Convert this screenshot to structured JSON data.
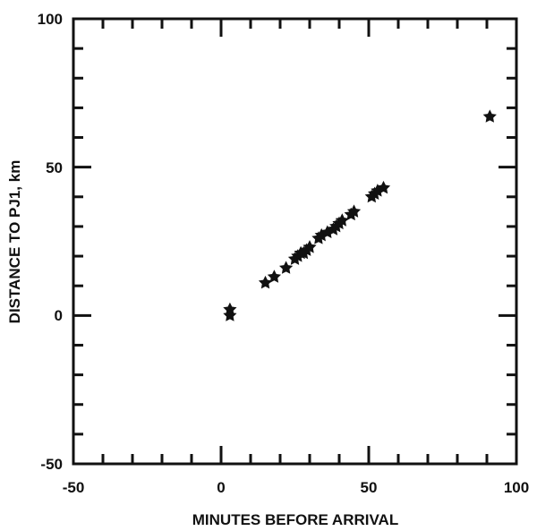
{
  "chart_data": {
    "type": "scatter",
    "title": "",
    "xlabel": "MINUTES BEFORE ARRIVAL",
    "ylabel": "DISTANCE TO PJ1, km",
    "xlim": [
      -50,
      100
    ],
    "ylim": [
      -50,
      100
    ],
    "xticks": [
      -50,
      0,
      50,
      100
    ],
    "yticks": [
      -50,
      0,
      50,
      100
    ],
    "xtick_labels": [
      "-50",
      "0",
      "50",
      "100"
    ],
    "ytick_labels": [
      "-50",
      "0",
      "50",
      "100"
    ],
    "grid": false,
    "legend": "none",
    "marker": "star",
    "color": "#111111",
    "series": [
      {
        "points": [
          {
            "x": 3,
            "y": 2
          },
          {
            "x": 3,
            "y": 0
          },
          {
            "x": 15,
            "y": 11
          },
          {
            "x": 18,
            "y": 13
          },
          {
            "x": 22,
            "y": 16
          },
          {
            "x": 25,
            "y": 19
          },
          {
            "x": 26,
            "y": 20
          },
          {
            "x": 27,
            "y": 21
          },
          {
            "x": 28,
            "y": 21
          },
          {
            "x": 29,
            "y": 22
          },
          {
            "x": 30,
            "y": 23
          },
          {
            "x": 33,
            "y": 26
          },
          {
            "x": 34,
            "y": 27
          },
          {
            "x": 36,
            "y": 28
          },
          {
            "x": 38,
            "y": 29
          },
          {
            "x": 39,
            "y": 30
          },
          {
            "x": 40,
            "y": 31
          },
          {
            "x": 41,
            "y": 32
          },
          {
            "x": 44,
            "y": 34
          },
          {
            "x": 45,
            "y": 35
          },
          {
            "x": 51,
            "y": 40
          },
          {
            "x": 52,
            "y": 41
          },
          {
            "x": 53,
            "y": 42
          },
          {
            "x": 55,
            "y": 43
          },
          {
            "x": 91,
            "y": 67
          }
        ]
      }
    ]
  }
}
